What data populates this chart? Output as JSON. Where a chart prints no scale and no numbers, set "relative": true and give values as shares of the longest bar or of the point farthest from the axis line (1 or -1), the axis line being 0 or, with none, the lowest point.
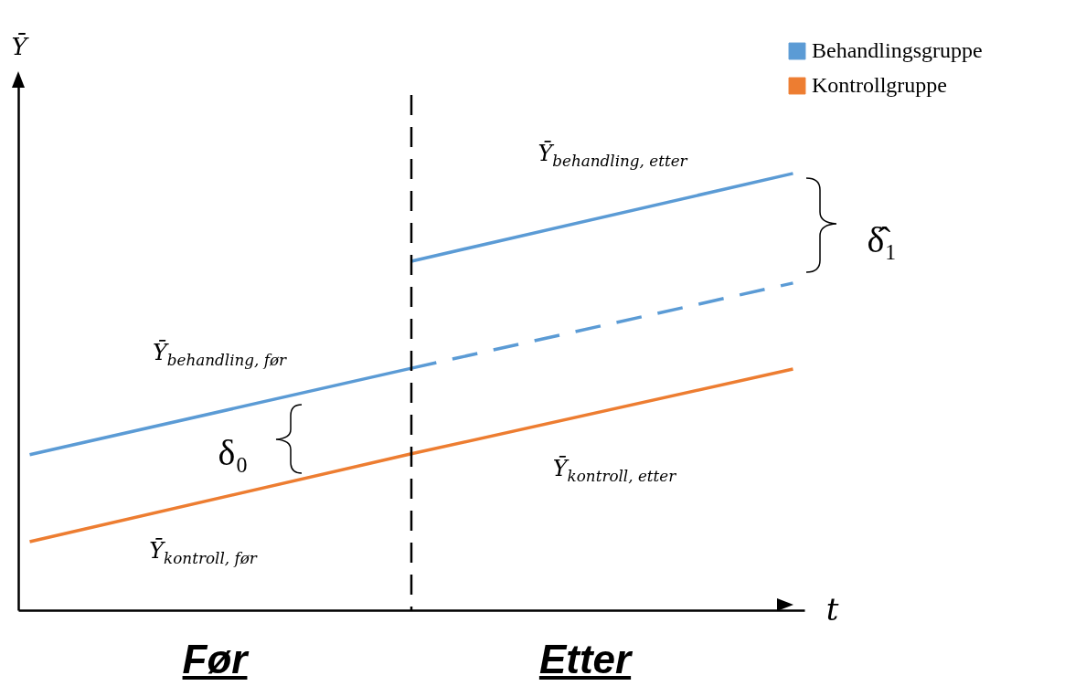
{
  "chart_data": {
    "type": "line",
    "relative": true,
    "ylabel": "Ȳ",
    "xlabel": "t",
    "categories": [
      null,
      null,
      null
    ],
    "series": [
      {
        "name": "Behandlingsgruppe",
        "color": "#5b9bd5",
        "line_style": "solid",
        "values": [
          0.356,
          0.554,
          null
        ]
      },
      {
        "color": "#5b9bd5",
        "line_style": "solid",
        "values": [
          null,
          0.799,
          1.0
        ]
      },
      {
        "color": "#5b9bd5",
        "line_style": "dashed",
        "values": [
          null,
          0.554,
          0.749
        ]
      },
      {
        "name": "Kontrollgruppe",
        "color": "#ed7d31",
        "line_style": "solid",
        "values": [
          0.157,
          0.358,
          0.552
        ]
      }
    ],
    "annotations": [
      "Ȳ$_{behandling, etter}$",
      "Ȳ$_{behandling, før}$",
      "Ȳ$_{kontroll, etter}$",
      "Ȳ$_{kontroll, før}$",
      "δ₀",
      "δ̂₁",
      "Før",
      "Etter"
    ],
    "legend": "top right",
    "grid": false
  }
}
